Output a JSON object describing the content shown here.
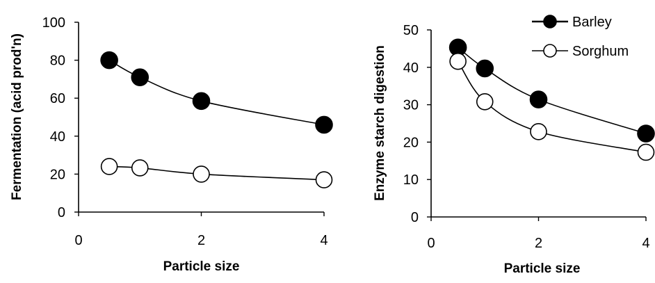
{
  "chart_data": [
    {
      "type": "line",
      "title": "",
      "xlabel": "Particle size",
      "ylabel": "Fermentation (acid prod'n)",
      "xlim": [
        0,
        4
      ],
      "ylim": [
        0,
        100
      ],
      "xticks": [
        "0",
        "2",
        "4"
      ],
      "yticks": [
        "0",
        "20",
        "40",
        "60",
        "80",
        "100"
      ],
      "grid": false,
      "series": [
        {
          "marker": "filled-circle",
          "x": [
            0.5,
            1,
            2,
            4
          ],
          "y": [
            80,
            71,
            58.5,
            46
          ]
        },
        {
          "marker": "open-circle",
          "x": [
            0.5,
            1,
            2,
            4
          ],
          "y": [
            24,
            23.3,
            20,
            17
          ]
        }
      ]
    },
    {
      "type": "line",
      "title": "",
      "xlabel": "Particle size",
      "ylabel": "Enzyme starch digestion",
      "xlim": [
        0,
        4
      ],
      "ylim": [
        0,
        50
      ],
      "xticks": [
        "0",
        "2",
        "4"
      ],
      "yticks": [
        "0",
        "10",
        "20",
        "30",
        "40",
        "50"
      ],
      "grid": false,
      "legend_position": "top-right",
      "series": [
        {
          "name": "Barley",
          "marker": "filled-circle",
          "x": [
            0.5,
            1,
            2,
            4
          ],
          "y": [
            45.3,
            39.7,
            31.4,
            22.3
          ]
        },
        {
          "name": "Sorghum",
          "marker": "open-circle",
          "x": [
            0.5,
            1,
            2,
            4
          ],
          "y": [
            41.6,
            30.8,
            22.8,
            17.3
          ]
        }
      ]
    }
  ]
}
